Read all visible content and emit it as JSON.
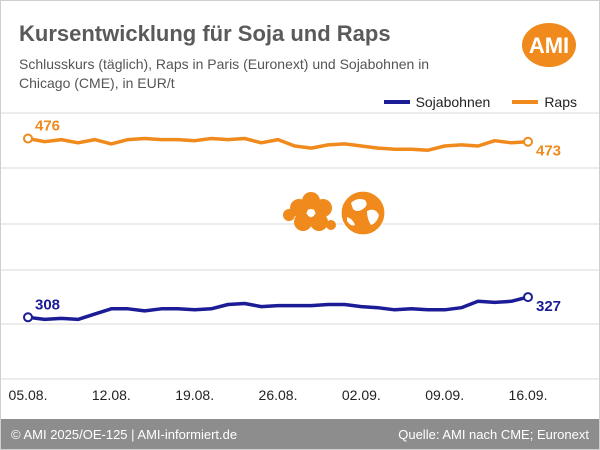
{
  "header": {
    "title": "Kursentwicklung für Soja und Raps",
    "subtitle": "Schlusskurs (täglich), Raps in Paris (Euronext) und Sojabohnen in Chicago (CME), in EUR/t",
    "logo_text": "AMI"
  },
  "legend": {
    "items": [
      {
        "label": "Sojabohnen",
        "color": "#1c1c96"
      },
      {
        "label": "Raps",
        "color": "#f08a1c"
      }
    ]
  },
  "colors": {
    "soy": "#1c1c96",
    "rapeseed": "#f08a1c",
    "logo": "#f08a1c",
    "grid": "#d8d8d8",
    "footer_bg": "#8d8d8d"
  },
  "chart_data": {
    "type": "line",
    "title": "Kursentwicklung für Soja und Raps",
    "subtitle": "Schlusskurs (täglich), Raps in Paris (Euronext) und Sojabohnen in Chicago (CME), in EUR/t",
    "xlabel": "",
    "ylabel": "",
    "ylim": [
      250,
      500
    ],
    "grid": true,
    "legend_position": "top-right",
    "x_ticks": [
      "05.08.",
      "12.08.",
      "19.08.",
      "26.08.",
      "02.09.",
      "09.09.",
      "16.09."
    ],
    "x": [
      "05.08.",
      "06.08.",
      "07.08.",
      "08.08.",
      "11.08.",
      "12.08.",
      "13.08.",
      "14.08.",
      "15.08.",
      "18.08.",
      "19.08.",
      "20.08.",
      "21.08.",
      "22.08.",
      "25.08.",
      "26.08.",
      "27.08.",
      "28.08.",
      "29.08.",
      "01.09.",
      "02.09.",
      "03.09.",
      "04.09.",
      "05.09.",
      "08.09.",
      "09.09.",
      "10.09.",
      "11.09.",
      "12.09.",
      "15.09.",
      "16.09."
    ],
    "series": [
      {
        "name": "Raps",
        "color": "#f08a1c",
        "values": [
          476,
          473,
          475,
          472,
          475,
          471,
          475,
          476,
          475,
          475,
          474,
          476,
          475,
          476,
          472,
          475,
          469,
          467,
          470,
          471,
          469,
          467,
          466,
          466,
          465,
          469,
          470,
          469,
          474,
          472,
          473
        ],
        "first_label": "476",
        "last_label": "473"
      },
      {
        "name": "Sojabohnen",
        "color": "#1c1c96",
        "values": [
          308,
          306,
          307,
          306,
          311,
          316,
          316,
          314,
          316,
          316,
          315,
          316,
          320,
          321,
          318,
          319,
          319,
          319,
          320,
          320,
          318,
          317,
          315,
          316,
          315,
          315,
          317,
          323,
          322,
          323,
          327
        ],
        "first_label": "308",
        "last_label": "327"
      }
    ]
  },
  "footer": {
    "left": "© AMI 2025/OE-125 | AMI-informiert.de",
    "right": "Quelle: AMI nach CME; Euronext"
  }
}
